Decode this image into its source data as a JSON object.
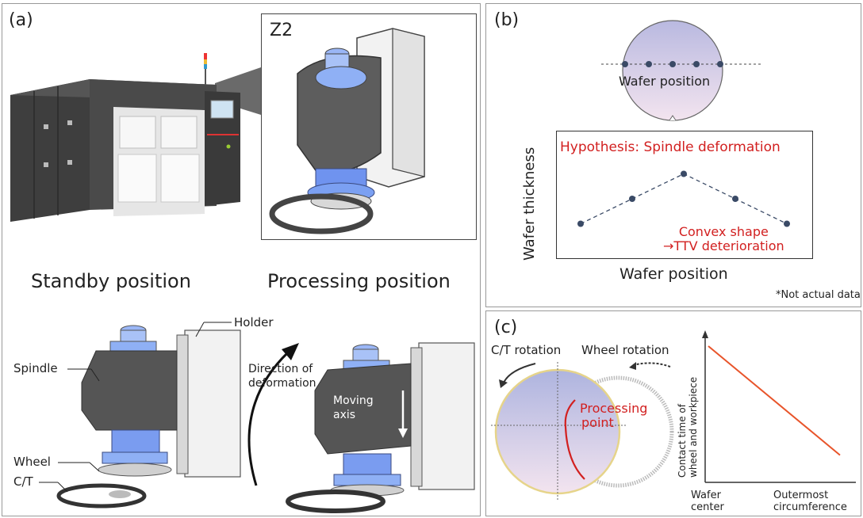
{
  "panel_a": {
    "label": "(a)",
    "inset_label": "Z2",
    "standby_caption": "Standby position",
    "processing_caption": "Processing position",
    "holder_label": "Holder",
    "spindle_label": "Spindle",
    "wheel_label": "Wheel",
    "ct_label": "C/T",
    "direction_label_line1": "Direction of",
    "direction_label_line2": "deformation",
    "moving_label_line1": "Moving",
    "moving_label_line2": "axis",
    "colors": {
      "spindle_blue": "#7a9cf0",
      "housing_gray": "#5a5a5a",
      "holder_white": "#f2f2f2"
    }
  },
  "panel_b": {
    "label": "(b)",
    "wafer_label": "Wafer position",
    "hypothesis": "Hypothesis: Spindle deformation",
    "convex_line1": "Convex shape",
    "convex_line2": "→TTV deterioration",
    "ylabel": "Wafer thickness",
    "xlabel": "Wafer position",
    "footnote": "*Not actual data",
    "thickness_profile": [
      0.15,
      0.5,
      0.85,
      0.5,
      0.15
    ],
    "colors": {
      "accent_red": "#d22020",
      "point": "#3a4a66"
    }
  },
  "panel_c": {
    "label": "(c)",
    "ct_rotation": "C/T rotation",
    "wheel_rotation": "Wheel rotation",
    "processing_line1": "Processing",
    "processing_line2": "point",
    "ylabel_line1": "Contact time of",
    "ylabel_line2": "wheel and workpiece",
    "x_start_line1": "Wafer",
    "x_start_line2": "center",
    "x_end_line1": "Outermost",
    "x_end_line2": "circumference",
    "contact_trend": {
      "start": 1.0,
      "end": 0.2
    },
    "colors": {
      "line": "#e8542a",
      "accent_red": "#d22020"
    }
  }
}
